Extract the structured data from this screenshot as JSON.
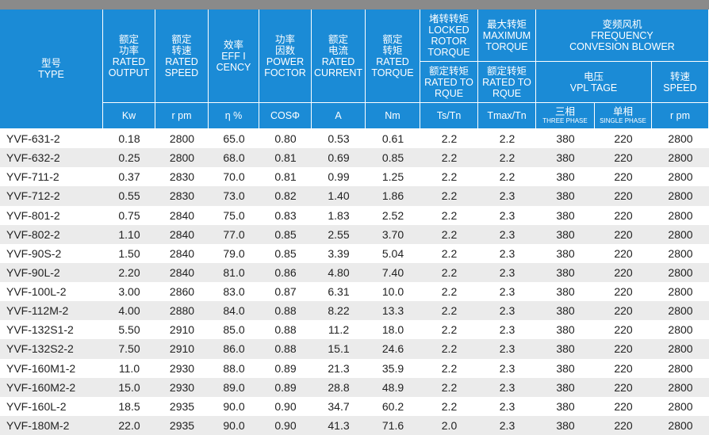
{
  "header": {
    "type": [
      "型号",
      "TYPE"
    ],
    "columns": [
      [
        "额定",
        "功率",
        "RATED",
        "OUTPUT"
      ],
      [
        "额定",
        "转速",
        "RATED",
        "SPEED"
      ],
      [
        "效率",
        "EFF I",
        "CENCY"
      ],
      [
        "功率",
        "因数",
        "POWER",
        "FOCTOR"
      ],
      [
        "额定",
        "电流",
        "RATED",
        "CURRENT"
      ],
      [
        "额定",
        "转矩",
        "RATED",
        "TORQUE"
      ]
    ],
    "locked_rotor_torque": [
      "堵转转矩",
      "LOCKED",
      "ROTOR",
      "TORQUE"
    ],
    "maximum_torque": [
      "最大转矩",
      "MAXIMUM",
      "TORQUE"
    ],
    "rated_torque_1": [
      "额定转矩",
      "RATED TO",
      "RQUE"
    ],
    "rated_torque_2": [
      "额定转矩",
      "RATED TO",
      "RQUE"
    ],
    "blower": [
      "变频风机",
      "FREQUENCY",
      "CONVESION BLOWER"
    ],
    "voltage": [
      "电压",
      "VPL TAGE"
    ],
    "speed": [
      "转速",
      "SPEED"
    ],
    "units": [
      "Kw",
      "r pm",
      "η %",
      "COSΦ",
      "A",
      "Nm",
      "Ts/Tn",
      "Tmax/Tn"
    ],
    "three_phase": [
      "三相",
      "THREE PHASE"
    ],
    "single_phase": [
      "单相",
      "SINGLE PHASE"
    ],
    "speed_unit": "r pm"
  },
  "rows": [
    [
      "YVF-631-2",
      "0.18",
      "2800",
      "65.0",
      "0.80",
      "0.53",
      "0.61",
      "2.2",
      "2.2",
      "380",
      "220",
      "2800"
    ],
    [
      "YVF-632-2",
      "0.25",
      "2800",
      "68.0",
      "0.81",
      "0.69",
      "0.85",
      "2.2",
      "2.2",
      "380",
      "220",
      "2800"
    ],
    [
      "YVF-711-2",
      "0.37",
      "2830",
      "70.0",
      "0.81",
      "0.99",
      "1.25",
      "2.2",
      "2.2",
      "380",
      "220",
      "2800"
    ],
    [
      "YVF-712-2",
      "0.55",
      "2830",
      "73.0",
      "0.82",
      "1.40",
      "1.86",
      "2.2",
      "2.3",
      "380",
      "220",
      "2800"
    ],
    [
      "YVF-801-2",
      "0.75",
      "2840",
      "75.0",
      "0.83",
      "1.83",
      "2.52",
      "2.2",
      "2.3",
      "380",
      "220",
      "2800"
    ],
    [
      "YVF-802-2",
      "1.10",
      "2840",
      "77.0",
      "0.85",
      "2.55",
      "3.70",
      "2.2",
      "2.3",
      "380",
      "220",
      "2800"
    ],
    [
      "YVF-90S-2",
      "1.50",
      "2840",
      "79.0",
      "0.85",
      "3.39",
      "5.04",
      "2.2",
      "2.3",
      "380",
      "220",
      "2800"
    ],
    [
      "YVF-90L-2",
      "2.20",
      "2840",
      "81.0",
      "0.86",
      "4.80",
      "7.40",
      "2.2",
      "2.3",
      "380",
      "220",
      "2800"
    ],
    [
      "YVF-100L-2",
      "3.00",
      "2860",
      "83.0",
      "0.87",
      "6.31",
      "10.0",
      "2.2",
      "2.3",
      "380",
      "220",
      "2800"
    ],
    [
      "YVF-112M-2",
      "4.00",
      "2880",
      "84.0",
      "0.88",
      "8.22",
      "13.3",
      "2.2",
      "2.3",
      "380",
      "220",
      "2800"
    ],
    [
      "YVF-132S1-2",
      "5.50",
      "2910",
      "85.0",
      "0.88",
      "11.2",
      "18.0",
      "2.2",
      "2.3",
      "380",
      "220",
      "2800"
    ],
    [
      "YVF-132S2-2",
      "7.50",
      "2910",
      "86.0",
      "0.88",
      "15.1",
      "24.6",
      "2.2",
      "2.3",
      "380",
      "220",
      "2800"
    ],
    [
      "YVF-160M1-2",
      "11.0",
      "2930",
      "88.0",
      "0.89",
      "21.3",
      "35.9",
      "2.2",
      "2.3",
      "380",
      "220",
      "2800"
    ],
    [
      "YVF-160M2-2",
      "15.0",
      "2930",
      "89.0",
      "0.89",
      "28.8",
      "48.9",
      "2.2",
      "2.3",
      "380",
      "220",
      "2800"
    ],
    [
      "YVF-160L-2",
      "18.5",
      "2935",
      "90.0",
      "0.90",
      "34.7",
      "60.2",
      "2.2",
      "2.3",
      "380",
      "220",
      "2800"
    ],
    [
      "YVF-180M-2",
      "22.0",
      "2935",
      "90.0",
      "0.90",
      "41.3",
      "71.6",
      "2.0",
      "2.3",
      "380",
      "220",
      "2800"
    ]
  ]
}
